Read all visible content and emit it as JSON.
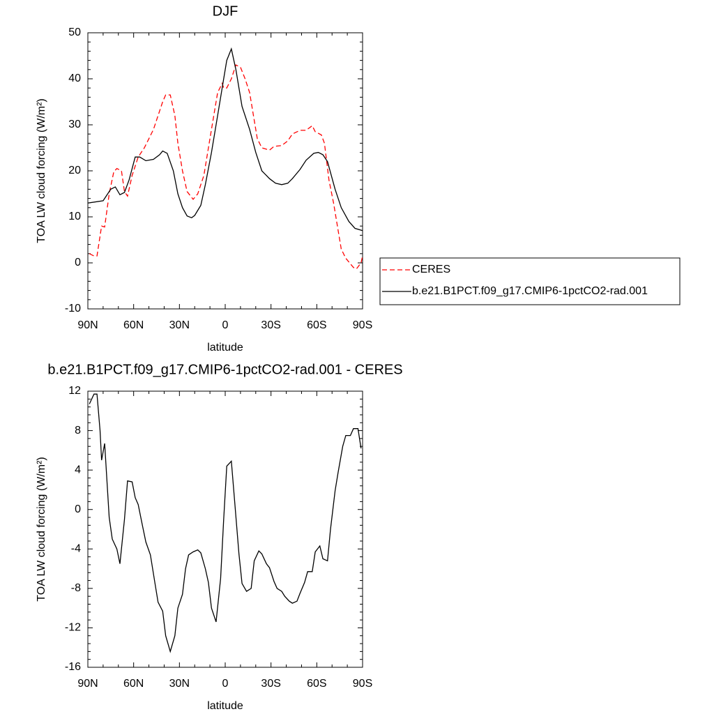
{
  "chart_data": [
    {
      "type": "line",
      "title": "DJF",
      "xlabel": "latitude",
      "ylabel": "TOA LW cloud forcing (W/m²)",
      "xlim": [
        90,
        -90
      ],
      "xticks": [
        {
          "value": 90,
          "label": "90N"
        },
        {
          "value": 60,
          "label": "60N"
        },
        {
          "value": 30,
          "label": "30N"
        },
        0,
        {
          "value": -30,
          "label": "30S"
        },
        {
          "value": -60,
          "label": "60S"
        },
        {
          "value": -90,
          "label": "90S"
        }
      ],
      "ylim": [
        -10,
        50
      ],
      "yticks": [
        -10,
        0,
        10,
        20,
        30,
        40,
        50
      ],
      "legend": "right",
      "series": [
        {
          "name": "CERES",
          "color": "#ff0000",
          "style": "dashed",
          "x": [
            89,
            86,
            84,
            81,
            79,
            76,
            73,
            71,
            68,
            66,
            64,
            61,
            57,
            53,
            50,
            47,
            43,
            41,
            39,
            36,
            33,
            31,
            28,
            25,
            21,
            18,
            14,
            10,
            8,
            5,
            2,
            1,
            -1,
            -4,
            -7,
            -10,
            -13,
            -16,
            -19,
            -21,
            -24,
            -29,
            -32,
            -37,
            -41,
            -44,
            -49,
            -53,
            -57,
            -59,
            -63,
            -65,
            -68,
            -71,
            -74,
            -76,
            -79,
            -84,
            -86,
            -89,
            -90
          ],
          "values": [
            2,
            1.5,
            1.5,
            8,
            7.8,
            15,
            19.8,
            20.5,
            20,
            15.5,
            14.5,
            19,
            23,
            25,
            27,
            29,
            33,
            35,
            36.5,
            36.5,
            32,
            26,
            20,
            15.5,
            13.8,
            15,
            19,
            27,
            31,
            37,
            39,
            38,
            38,
            40,
            43,
            42.5,
            40,
            37,
            31,
            27,
            25,
            24.5,
            25.3,
            25.5,
            26.5,
            28,
            28.8,
            28.8,
            29.8,
            28.5,
            27.8,
            26,
            18,
            13,
            7,
            3,
            1,
            -1,
            -1.3,
            0,
            1.5
          ]
        },
        {
          "name": "b.e21.B1PCT.f09_g17.CMIP6-1pctCO2-rad.001",
          "color": "#000000",
          "style": "solid",
          "x": [
            90,
            80,
            75,
            72,
            69,
            66,
            63,
            59,
            56,
            52,
            47,
            43,
            41,
            38,
            34,
            31,
            28,
            25,
            22,
            20,
            16,
            13,
            9,
            5,
            1,
            -1,
            -4,
            -7,
            -11,
            -16,
            -20,
            -24,
            -29,
            -33,
            -37,
            -41,
            -44,
            -49,
            -53,
            -58,
            -61,
            -64,
            -67,
            -72,
            -76,
            -81,
            -85,
            -90
          ],
          "values": [
            13,
            13.5,
            16,
            16.5,
            14.8,
            15.3,
            18,
            23,
            23,
            22.2,
            22.5,
            23.5,
            24.3,
            23.8,
            20,
            15,
            12,
            10.2,
            9.8,
            10.3,
            12.5,
            17,
            24,
            32,
            40,
            44,
            46.5,
            42,
            34,
            29,
            24,
            20,
            18.3,
            17.3,
            17,
            17.3,
            18.3,
            20.3,
            22.3,
            23.8,
            24,
            23.5,
            22,
            16,
            12,
            9,
            7.5,
            7
          ]
        }
      ]
    },
    {
      "type": "line",
      "title": "b.e21.B1PCT.f09_g17.CMIP6-1pctCO2-rad.001 - CERES",
      "xlabel": "latitude",
      "ylabel": "TOA LW cloud forcing (W/m²)",
      "xlim": [
        90,
        -90
      ],
      "xticks": [
        {
          "value": 90,
          "label": "90N"
        },
        {
          "value": 60,
          "label": "60N"
        },
        {
          "value": 30,
          "label": "30N"
        },
        0,
        {
          "value": -30,
          "label": "30S"
        },
        {
          "value": -60,
          "label": "60S"
        },
        {
          "value": -90,
          "label": "90S"
        }
      ],
      "ylim": [
        -16,
        12
      ],
      "yticks": [
        -16,
        -12,
        -8,
        -4,
        0,
        4,
        8,
        12
      ],
      "series": [
        {
          "color": "#000000",
          "style": "solid",
          "x": [
            89,
            86,
            84,
            82,
            81,
            79,
            76,
            74,
            71,
            69,
            66,
            64,
            61,
            59,
            57,
            54,
            52,
            49,
            46,
            44,
            41,
            39,
            36,
            33,
            31,
            28,
            26,
            24,
            21,
            18,
            16,
            13,
            11,
            9,
            6,
            3,
            1,
            -1,
            -4,
            -6,
            -9,
            -11,
            -14,
            -17,
            -19,
            -22,
            -24,
            -27,
            -29,
            -32,
            -34,
            -37,
            -39,
            -42,
            -44,
            -47,
            -49,
            -52,
            -54,
            -57,
            -59,
            -62,
            -64,
            -67,
            -69,
            -72,
            -74,
            -77,
            -79,
            -82,
            -84,
            -87,
            -89
          ],
          "values": [
            10.7,
            11.7,
            11.7,
            8,
            5,
            6.7,
            -0.8,
            -3,
            -4,
            -5.5,
            -1,
            2.9,
            2.8,
            1.2,
            0.5,
            -1.8,
            -3.3,
            -4.6,
            -7.5,
            -9.4,
            -10.3,
            -12.8,
            -14.4,
            -12.8,
            -10,
            -8.6,
            -6,
            -4.6,
            -4.3,
            -4.1,
            -4.4,
            -6,
            -7.4,
            -10,
            -11.4,
            -7,
            -1,
            4.4,
            4.9,
            1.2,
            -4.5,
            -7.5,
            -8.3,
            -8,
            -5.2,
            -4.2,
            -4.5,
            -5.5,
            -5.9,
            -7.3,
            -8,
            -8.3,
            -8.8,
            -9.3,
            -9.5,
            -9.3,
            -8.5,
            -7.4,
            -6.3,
            -6.3,
            -4.3,
            -3.7,
            -5,
            -5.2,
            -2,
            1.9,
            3.8,
            6.4,
            7.5,
            7.5,
            8.2,
            8.2,
            6.2
          ]
        }
      ]
    }
  ]
}
